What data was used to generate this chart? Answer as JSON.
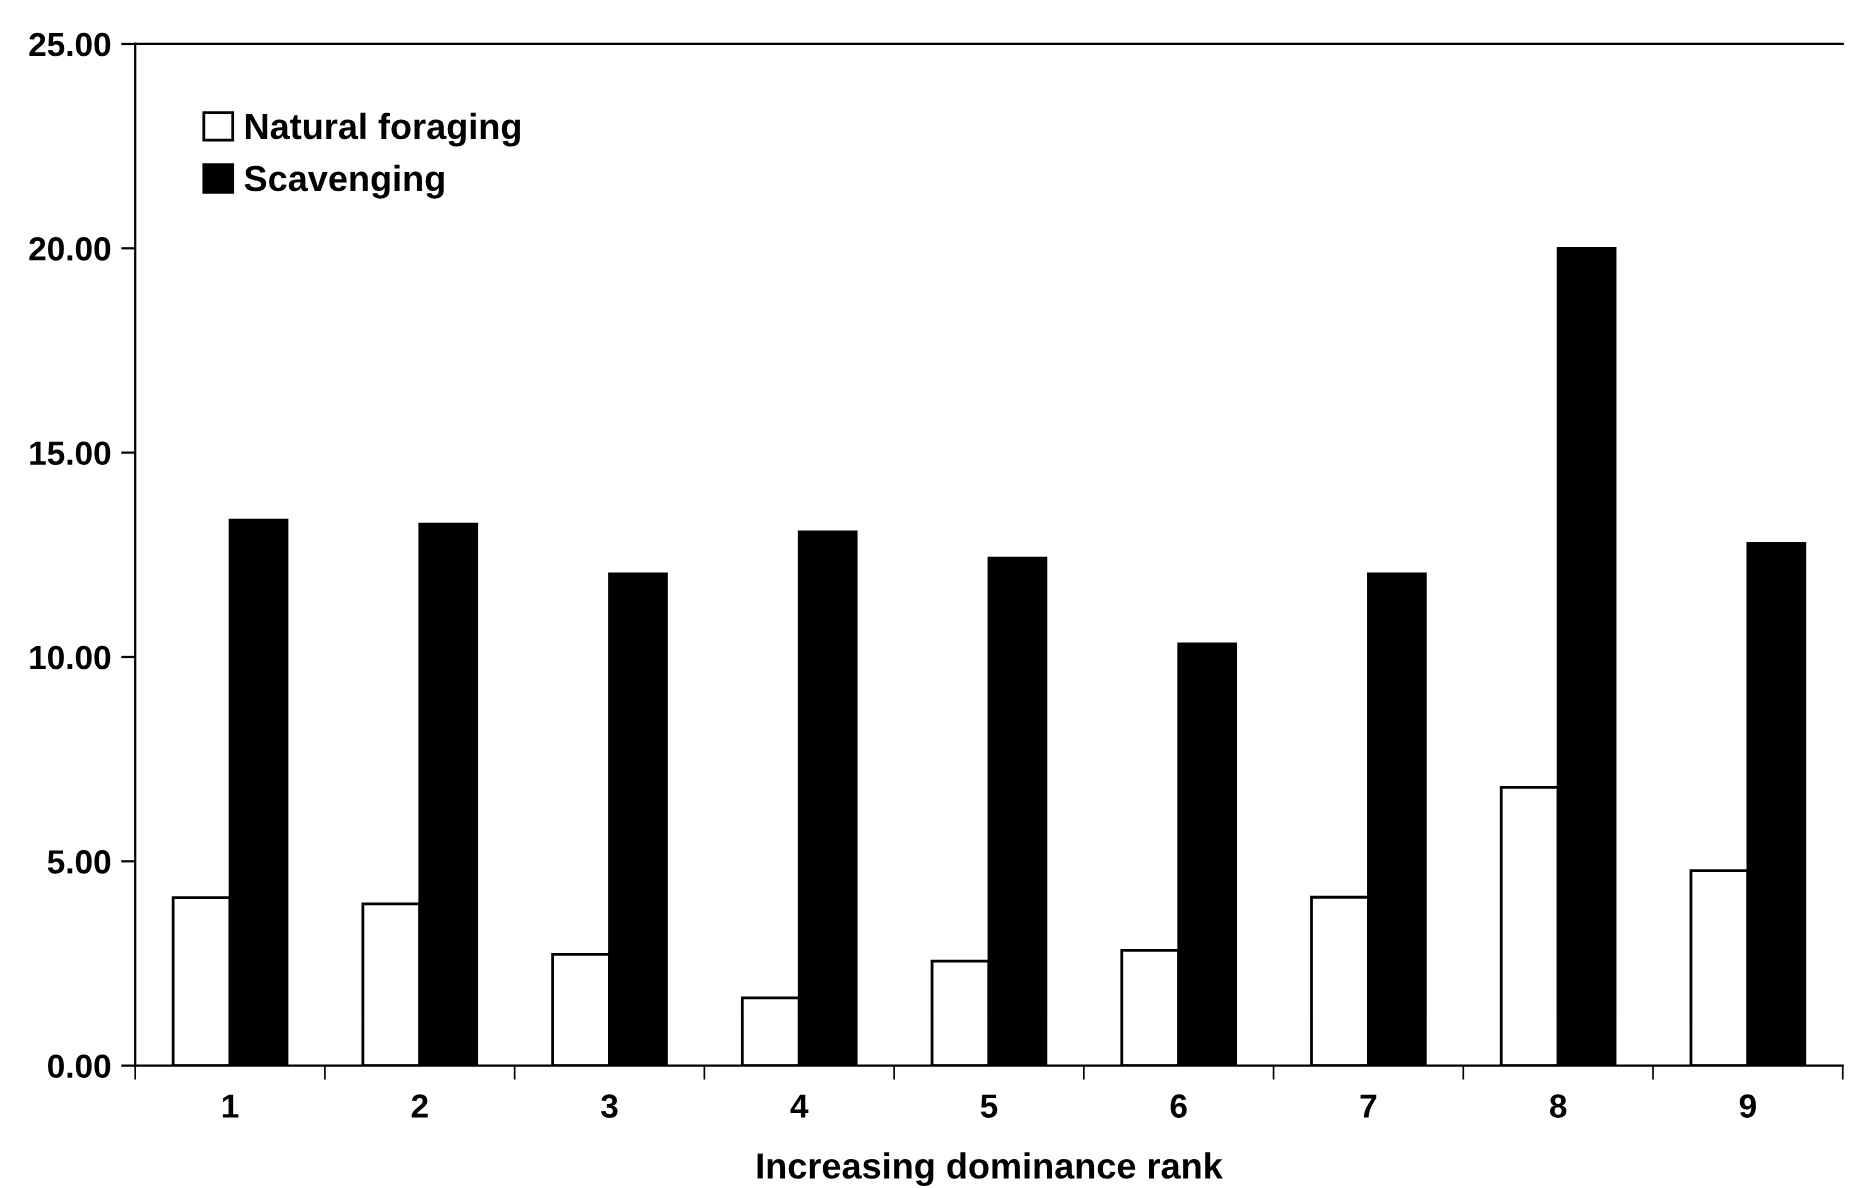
{
  "chart_data": {
    "type": "bar",
    "xlabel": "Increasing dominance rank",
    "categories": [
      "1",
      "2",
      "3",
      "4",
      "5",
      "6",
      "7",
      "8",
      "9"
    ],
    "series": [
      {
        "name": "Natural foraging",
        "color": "#ffffff",
        "values": [
          4.11,
          3.96,
          2.72,
          1.66,
          2.56,
          2.82,
          4.12,
          6.81,
          4.77
        ]
      },
      {
        "name": "Scavenging",
        "color": "#000000",
        "values": [
          13.35,
          13.25,
          12.03,
          13.06,
          12.42,
          10.32,
          12.03,
          20.0,
          12.78
        ]
      }
    ],
    "ylim": [
      0,
      25
    ],
    "yticks": [
      {
        "value": 0,
        "label": "0.00"
      },
      {
        "value": 5,
        "label": "5.00"
      },
      {
        "value": 10,
        "label": "10.00"
      },
      {
        "value": 15,
        "label": "15.00"
      },
      {
        "value": 20,
        "label": "20.00"
      },
      {
        "value": 25,
        "label": "25.00"
      }
    ],
    "grid": false,
    "legend": "top left"
  }
}
